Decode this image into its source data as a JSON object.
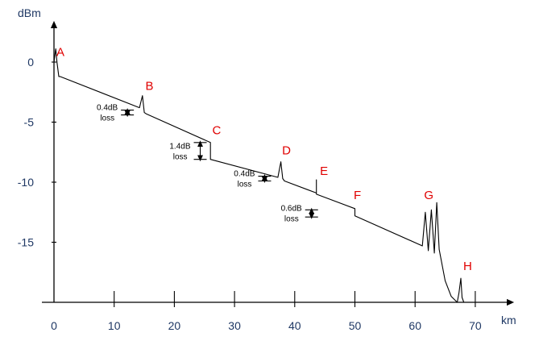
{
  "chart_data": {
    "type": "line",
    "title": "",
    "xlabel": "km",
    "ylabel": "dBm",
    "x_ticks": [
      0,
      10,
      20,
      30,
      40,
      50,
      60,
      70
    ],
    "y_ticks": [
      0,
      -5,
      -10,
      -15
    ],
    "xlim": [
      0,
      70
    ],
    "ylim": [
      -20,
      3.5
    ],
    "grid": false,
    "legend": "none",
    "series": [
      {
        "x": [
          0,
          0.3,
          0.5,
          0.8,
          1,
          14.2,
          14.7,
          15.0,
          15.3,
          26.0,
          26.0,
          37.2,
          37.7,
          38.0,
          38.3,
          43.6,
          43.6,
          43.6,
          50.0,
          50.0,
          61.2,
          61.7,
          62.2,
          62.7,
          63.2,
          63.6,
          64.0,
          65.0,
          66.0,
          67.0,
          67.3,
          67.6,
          67.8,
          68.1,
          68.4
        ],
        "y": [
          0,
          1.1,
          0,
          -1.2,
          -1.2,
          -3.8,
          -2.8,
          -4.2,
          -4.3,
          -6.7,
          -8.1,
          -9.6,
          -8.3,
          -9.7,
          -9.9,
          -10.9,
          -9.8,
          -11.0,
          -12.2,
          -12.8,
          -15.3,
          -12.5,
          -15.7,
          -12.3,
          -15.9,
          -11.7,
          -15.6,
          -18.2,
          -19.5,
          -20.0,
          -19.2,
          -18.0,
          -19.6,
          -20.0,
          -20.0
        ]
      }
    ],
    "events": [
      {
        "label": "A",
        "x": 0.4,
        "y": 0.5
      },
      {
        "label": "B",
        "x": 15.2,
        "y": -2.3
      },
      {
        "label": "C",
        "x": 26.3,
        "y": -6.0
      },
      {
        "label": "D",
        "x": 37.9,
        "y": -7.7
      },
      {
        "label": "E",
        "x": 44.2,
        "y": -9.4
      },
      {
        "label": "F",
        "x": 49.8,
        "y": -11.4
      },
      {
        "label": "G",
        "x": 61.5,
        "y": -11.4
      },
      {
        "label": "H",
        "x": 68.0,
        "y": -17.3
      }
    ],
    "loss_annotations": [
      {
        "value_text": "0.4dB",
        "unit_text": "loss",
        "x": 12.2,
        "y": -4.2,
        "gap": 0.4
      },
      {
        "value_text": "1.4dB",
        "unit_text": "loss",
        "x": 24.3,
        "y": -7.4,
        "gap": 1.4
      },
      {
        "value_text": "0.4dB",
        "unit_text": "loss",
        "x": 35.0,
        "y": -9.7,
        "gap": 0.4
      },
      {
        "value_text": "0.6dB",
        "unit_text": "loss",
        "x": 42.8,
        "y": -12.6,
        "gap": 0.6
      }
    ]
  }
}
